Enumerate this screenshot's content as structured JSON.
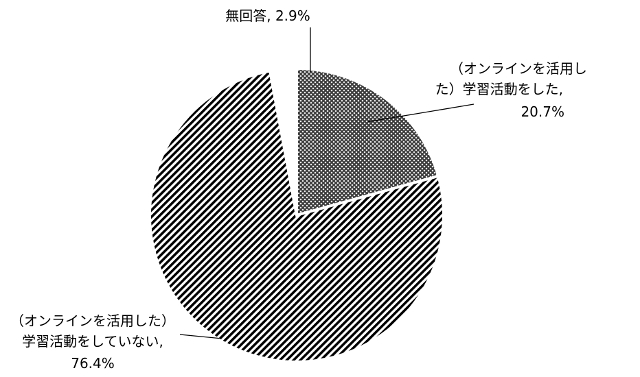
{
  "chart_data": {
    "type": "pie",
    "title": "",
    "categories": [
      "(オンラインを活用した)学習活動をした",
      "(オンラインを活用した)学習活動をしていない",
      "無回答"
    ],
    "values": [
      20.7,
      76.4,
      2.9
    ],
    "unit": "%",
    "label_text": [
      [
        "（オンラインを活用し",
        "た）学習活動をした,",
        "20.7%"
      ],
      [
        "（オンラインを活用した）",
        "学習活動をしていない,",
        "76.4%"
      ],
      [
        "無回答, 2.9%"
      ]
    ],
    "fills": [
      "crosshatch-gray",
      "diagonal-stripes",
      "white"
    ],
    "start_angle_deg": 0,
    "direction": "clockwise"
  }
}
